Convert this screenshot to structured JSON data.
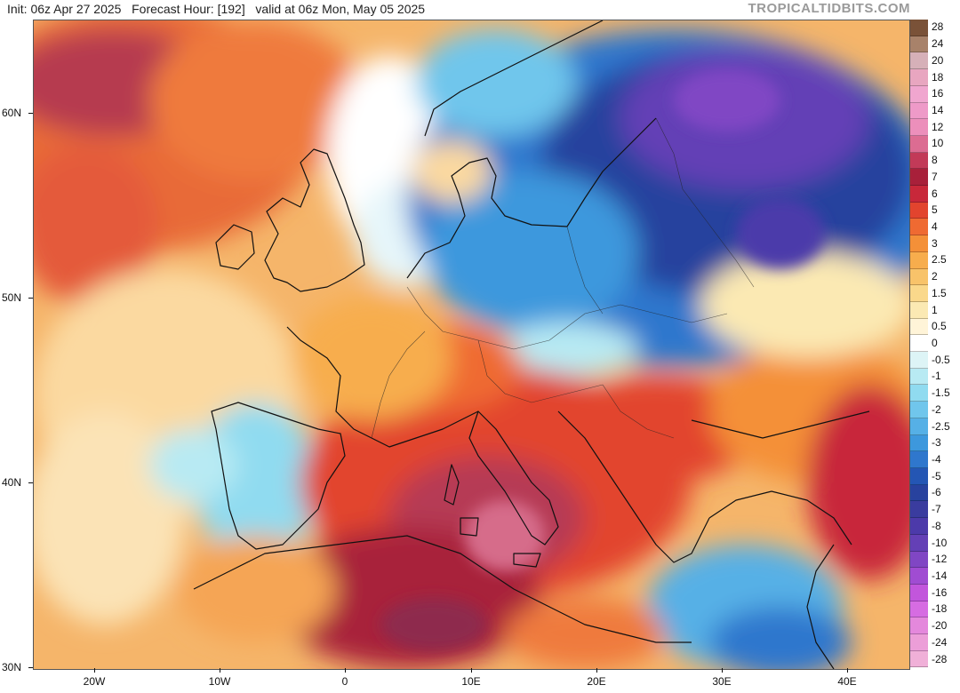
{
  "header": {
    "init": "Init: 06z Apr 27 2025",
    "forecast_hour": "Forecast Hour: [192]",
    "valid": "valid at 06z Mon, May 05 2025"
  },
  "brand": "TROPICALTIDBITS.COM",
  "axes": {
    "lat_labels": [
      "60N",
      "50N",
      "40N",
      "30N"
    ],
    "lon_labels": [
      "20W",
      "10W",
      "0",
      "10E",
      "20E",
      "30E",
      "40E"
    ]
  },
  "colorbar": {
    "labels": [
      "28",
      "24",
      "20",
      "18",
      "16",
      "14",
      "12",
      "10",
      "8",
      "7",
      "6",
      "5",
      "4",
      "3",
      "2.5",
      "2",
      "1.5",
      "1",
      "0.5",
      "0",
      "-0.5",
      "-1",
      "-1.5",
      "-2",
      "-2.5",
      "-3",
      "-4",
      "-5",
      "-6",
      "-7",
      "-8",
      "-10",
      "-12",
      "-14",
      "-16",
      "-18",
      "-20",
      "-24",
      "-28"
    ],
    "colors": [
      "#7a5238",
      "#a8826a",
      "#d6b0b8",
      "#e8a6c0",
      "#f0a6cf",
      "#ee9ac8",
      "#ec8fbb",
      "#dc6c92",
      "#c23a58",
      "#a8203a",
      "#c8283a",
      "#e2442e",
      "#ef6a32",
      "#f49038",
      "#f7ad4d",
      "#f8c36a",
      "#fad88b",
      "#fbe9b3",
      "#fff4d8",
      "#ffffff",
      "#ddf4f6",
      "#b8eaf3",
      "#90dbf0",
      "#70c6ec",
      "#56b0e6",
      "#3d98dd",
      "#2f77cd",
      "#2456b4",
      "#28429e",
      "#3a3c9f",
      "#4c3aaa",
      "#6440b6",
      "#8046c4",
      "#a04cd2",
      "#c256dc",
      "#d66ce2",
      "#e488dc",
      "#ec9ed8",
      "#f0b0d8"
    ]
  }
}
